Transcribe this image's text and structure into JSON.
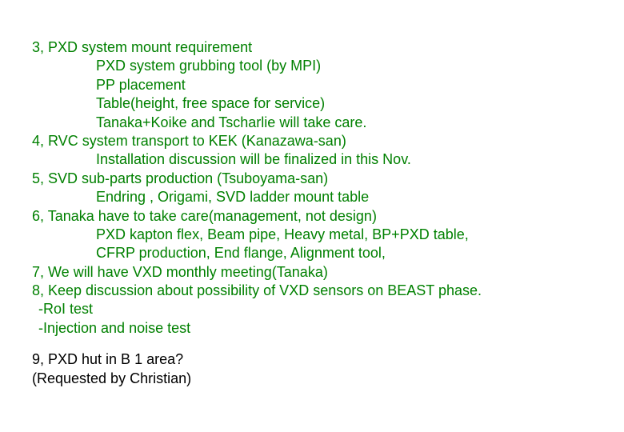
{
  "text_color_main": "#008000",
  "text_color_alt": "#000000",
  "background_color": "#ffffff",
  "font_size": 18,
  "font_family": "Arial",
  "lines": {
    "l1": "3, PXD system mount requirement",
    "l2": "PXD system grubbing tool (by MPI)",
    "l3": "PP placement",
    "l4": "Table(height, free space for service)",
    "l5": "Tanaka+Koike and Tscharlie will take care.",
    "l6": "4, RVC system transport to KEK (Kanazawa-san)",
    "l7": "Installation discussion will be finalized in this Nov.",
    "l8": "5, SVD sub-parts production (Tsuboyama-san)",
    "l9": "Endring , Origami, SVD ladder mount table",
    "l10": "6, Tanaka have to take care(management, not design)",
    "l11": "PXD kapton flex, Beam pipe, Heavy metal, BP+PXD table,",
    "l12": "CFRP production, End flange, Alignment tool,",
    "l13": "7, We will have VXD monthly meeting(Tanaka)",
    "l14": "8, Keep discussion about possibility of VXD sensors on BEAST phase.",
    "l15": "-RoI test",
    "l16": "-Injection and noise test",
    "l17": "9, PXD hut in B 1 area?",
    "l18": "(Requested by Christian)"
  }
}
